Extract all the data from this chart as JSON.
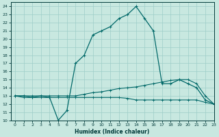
{
  "title": "",
  "xlabel": "Humidex (Indice chaleur)",
  "bg_color": "#c8e8e0",
  "grid_color": "#9ecec8",
  "line_color": "#006868",
  "xlim": [
    -0.5,
    23
  ],
  "ylim": [
    10,
    24.5
  ],
  "xticks": [
    0,
    1,
    2,
    3,
    4,
    5,
    6,
    7,
    8,
    9,
    10,
    11,
    12,
    13,
    14,
    15,
    16,
    17,
    18,
    19,
    20,
    21,
    22,
    23
  ],
  "yticks": [
    10,
    11,
    12,
    13,
    14,
    15,
    16,
    17,
    18,
    19,
    20,
    21,
    22,
    23,
    24
  ],
  "line1_x": [
    0,
    1,
    2,
    3,
    4,
    5,
    6,
    7,
    8,
    9,
    10,
    11,
    12,
    13,
    14,
    15,
    16,
    17,
    18,
    19,
    20,
    21,
    22,
    23
  ],
  "line1_y": [
    13,
    13,
    12.8,
    13,
    12.8,
    10,
    11.2,
    17,
    18,
    20.5,
    21,
    21.5,
    22.5,
    23,
    24,
    22.5,
    21,
    14.5,
    14.5,
    15,
    14.5,
    14,
    12.5,
    12
  ],
  "line2_x": [
    0,
    1,
    2,
    3,
    4,
    5,
    6,
    7,
    8,
    9,
    10,
    11,
    12,
    13,
    14,
    15,
    16,
    17,
    18,
    19,
    20,
    21,
    22,
    23
  ],
  "line2_y": [
    13,
    13,
    13,
    13,
    13,
    13,
    13,
    13,
    13.2,
    13.4,
    13.5,
    13.7,
    13.9,
    14.0,
    14.1,
    14.3,
    14.5,
    14.7,
    14.9,
    15.0,
    15.0,
    14.5,
    13,
    12
  ],
  "line3_x": [
    0,
    1,
    2,
    3,
    4,
    5,
    6,
    7,
    8,
    9,
    10,
    11,
    12,
    13,
    14,
    15,
    16,
    17,
    18,
    19,
    20,
    21,
    22,
    23
  ],
  "line3_y": [
    13,
    12.8,
    12.8,
    12.8,
    12.8,
    12.8,
    12.8,
    12.8,
    12.8,
    12.8,
    12.8,
    12.8,
    12.8,
    12.7,
    12.5,
    12.5,
    12.5,
    12.5,
    12.5,
    12.5,
    12.5,
    12.5,
    12.2,
    12
  ]
}
